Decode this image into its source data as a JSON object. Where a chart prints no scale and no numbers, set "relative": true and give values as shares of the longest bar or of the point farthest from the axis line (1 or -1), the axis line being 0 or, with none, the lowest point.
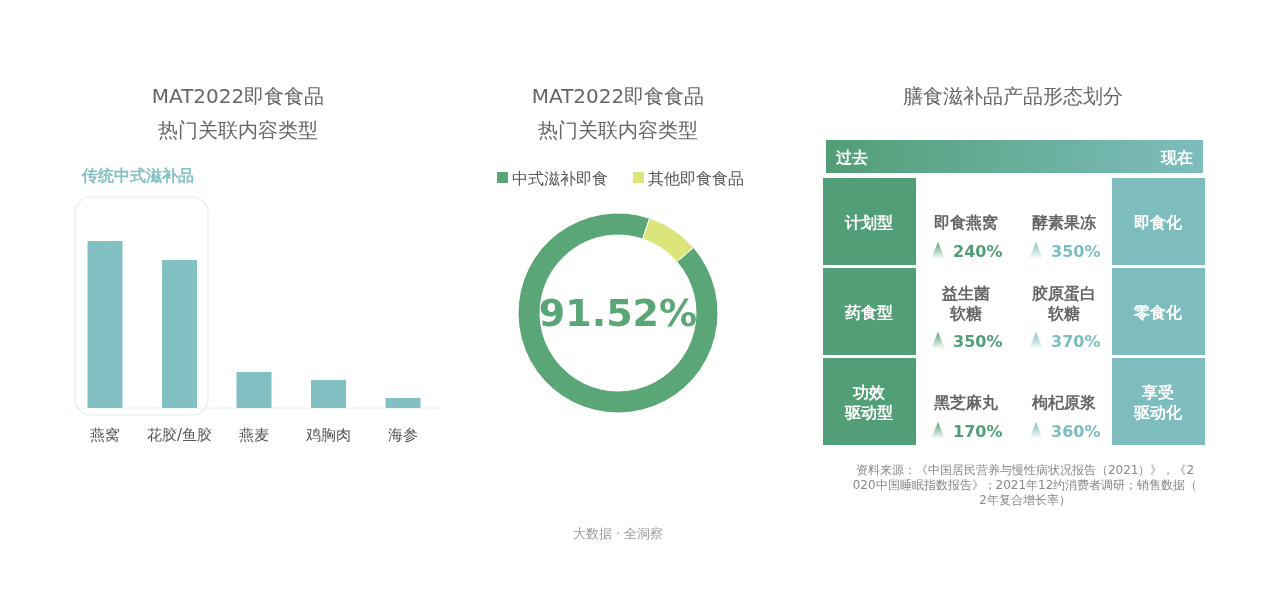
{
  "chart_data": [
    {
      "type": "bar",
      "title": "MAT2022即食食品",
      "subtitle": "热门关联内容类型",
      "categories": [
        "燕窝",
        "花胶/鱼胶",
        "燕麦",
        "鸡胸肉",
        "海参"
      ],
      "values": [
        1,
        0.886,
        0.216,
        0.168,
        0.06
      ],
      "color": "#82c0c3",
      "relative": true,
      "annotations": [
        "传统中式滋补品"
      ]
    },
    {
      "type": "donut",
      "title": "MAT2022即食食品",
      "subtitle": "热门关联内容类型",
      "categories": [
        "中式滋补即食",
        "其他即食食品"
      ],
      "values": [
        91.52,
        8.48
      ],
      "colors": [
        "#5aa677",
        "#dce57a"
      ],
      "value_labels": [
        "91.52%",
        null
      ],
      "legend": "top",
      "annotations": [
        "大数据 · 全洞察"
      ]
    },
    {
      "type": "other",
      "title": "膳食滋补品产品形态划分",
      "annotations": [
        "过去",
        "现在",
        "计划型",
        "即食燕窝",
        "240%",
        "酵素果冻",
        "350%",
        "即食化",
        "药食型",
        "益生菌软糖",
        "350%",
        "胶原蛋白软糖",
        "370%",
        "零食化",
        "功效驱动型",
        "黑芝麻丸",
        "170%",
        "枸杞原浆",
        "360%",
        "享受驱动化",
        "资料来源：《中国居民营养与慢性病状况报告（2021）》，《2020中国睡眠指数报告》；2021年12约消费者调研；销售数据（2年复合增长率）"
      ]
    }
  ]
}
